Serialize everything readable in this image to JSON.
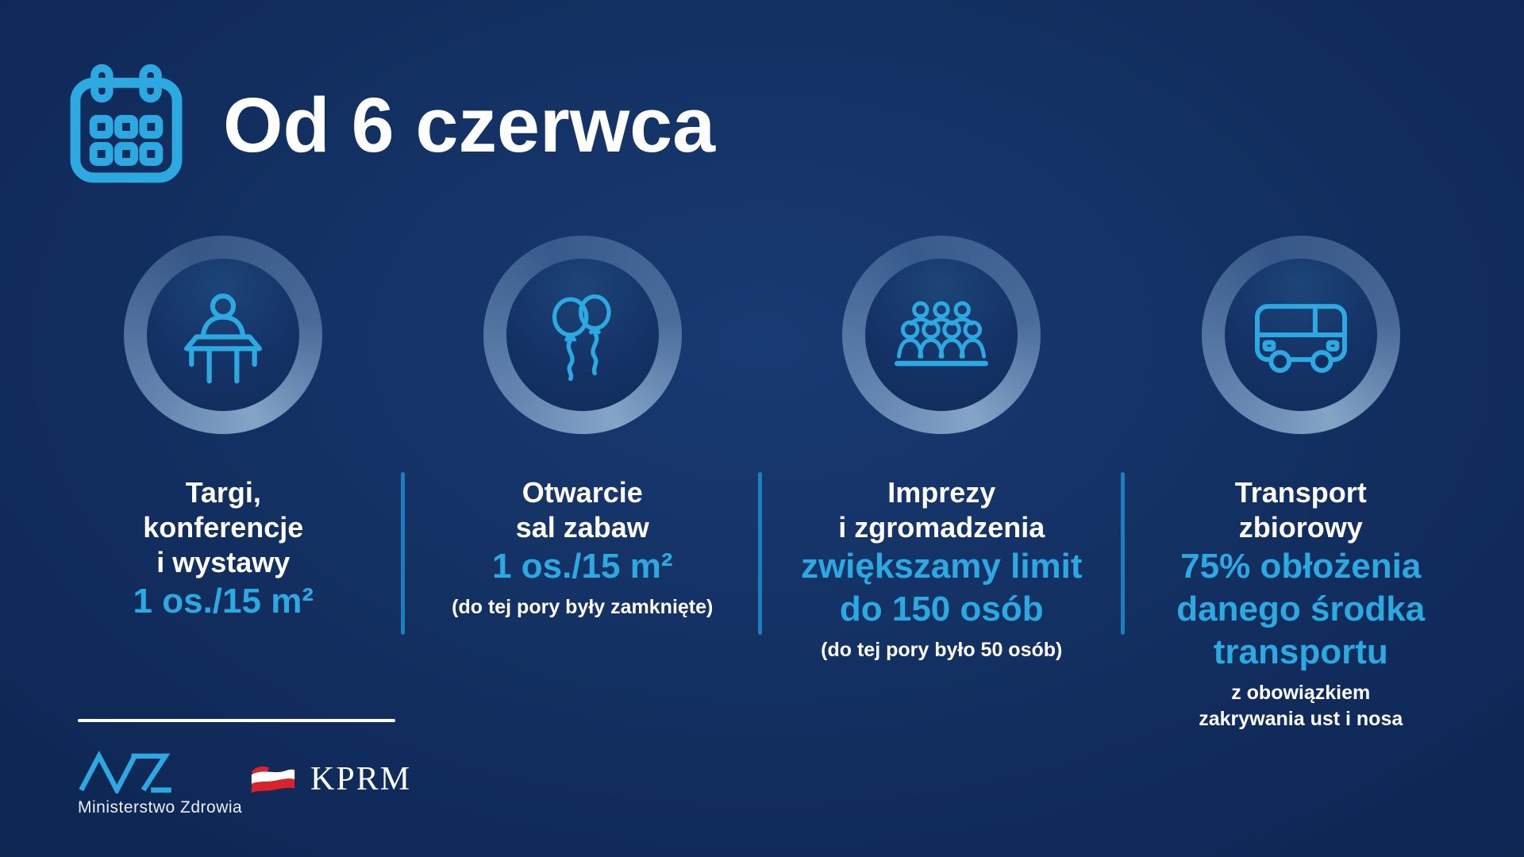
{
  "theme": {
    "accent": "#2da9e2",
    "background": "#112d5e",
    "divider": "#1e7dc1",
    "text_white": "#ffffff",
    "flag_red": "#d8232a"
  },
  "header": {
    "title": "Od 6 czerwca",
    "icon": "calendar-icon"
  },
  "columns": [
    {
      "icon": "lectern-speaker-icon",
      "title_lines": [
        "Targi,",
        "konferencje",
        "i wystawy"
      ],
      "highlight_lines": [
        "1 os./15 m²"
      ],
      "note_lines": []
    },
    {
      "icon": "balloons-icon",
      "title_lines": [
        "Otwarcie",
        "sal zabaw"
      ],
      "highlight_lines": [
        "1 os./15 m²"
      ],
      "note_lines": [
        "(do tej pory były zamknięte)"
      ]
    },
    {
      "icon": "audience-icon",
      "title_lines": [
        "Imprezy",
        "i zgromadzenia"
      ],
      "highlight_lines": [
        "zwiększamy limit",
        "do 150 osób"
      ],
      "note_lines": [
        "(do tej pory było 50 osób)"
      ]
    },
    {
      "icon": "bus-icon",
      "title_lines": [
        "Transport",
        "zbiorowy"
      ],
      "highlight_lines": [
        "75% obłożenia",
        "danego środka",
        "transportu"
      ],
      "note_lines": [
        "z obowiązkiem",
        "zakrywania ust i nosa"
      ]
    }
  ],
  "footer": {
    "ministry_logo": "ministerstwo-zdrowia-logo",
    "ministry_label": "Ministerstwo Zdrowia",
    "kprm_flag": "polish-flag-icon",
    "kprm_label": "KPRM"
  }
}
